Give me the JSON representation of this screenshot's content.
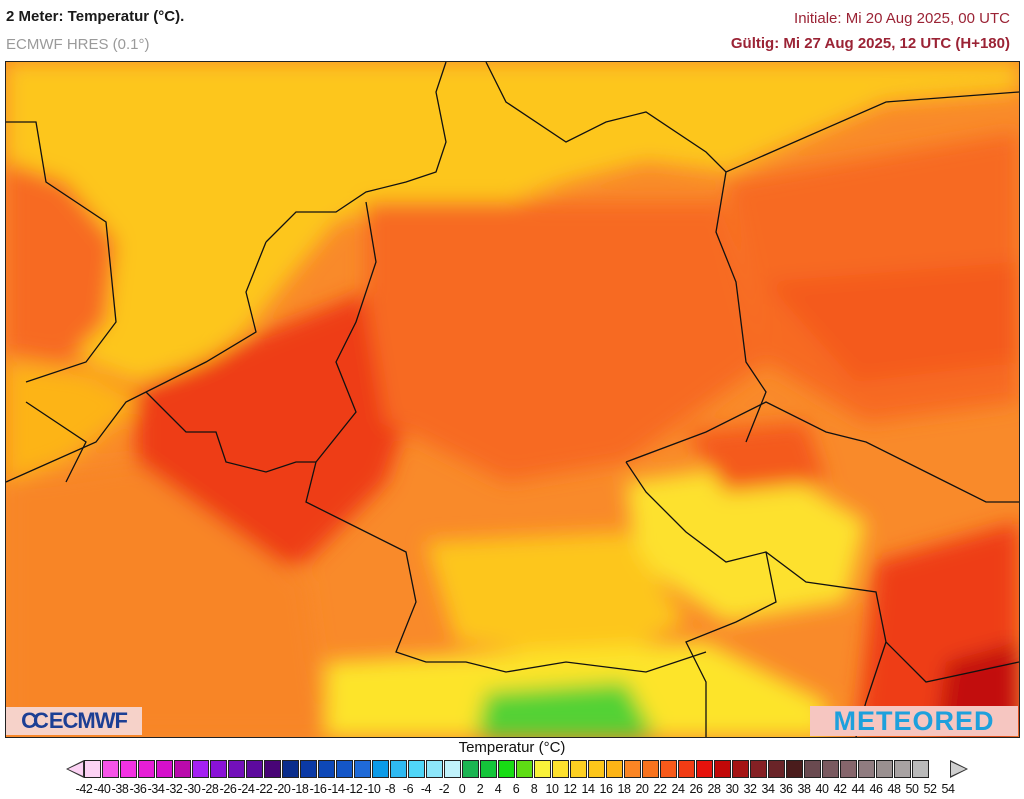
{
  "header": {
    "title": "2 Meter: Temperatur (°C).",
    "model": "ECMWF HRES (0.1°)",
    "initial": "Initiale: Mi 20 Aug 2025, 00 UTC",
    "valid": "Gültig: Mi 27 Aug 2025, 12 UTC (H+180)"
  },
  "logos": {
    "left": "ECMWF",
    "left_mark": "CC",
    "right": "METEORED"
  },
  "map": {
    "region": "Central Europe (Germany, Benelux, France, Czechia, Alps)",
    "field": "2m temperature",
    "dominant_colors": {
      "sea": "#fdc61a",
      "land_warm": "#f76b20",
      "land_hot": "#ee3c18",
      "uplands_cool": "#fde42a",
      "alps_green": "#52d236",
      "borders": "#111111",
      "lakes": "#9a9a9a"
    }
  },
  "colorbar": {
    "title": "Temperatur (°C)",
    "labels": [
      "-42",
      "-40",
      "-38",
      "-36",
      "-34",
      "-32",
      "-30",
      "-28",
      "-26",
      "-24",
      "-22",
      "-20",
      "-18",
      "-16",
      "-14",
      "-12",
      "-10",
      "-8",
      "-6",
      "-4",
      "-2",
      "0",
      "2",
      "4",
      "6",
      "8",
      "10",
      "12",
      "14",
      "16",
      "18",
      "20",
      "22",
      "24",
      "26",
      "28",
      "30",
      "32",
      "34",
      "36",
      "38",
      "40",
      "42",
      "44",
      "46",
      "48",
      "50",
      "52",
      "54"
    ],
    "colors": [
      "#fcd2f4",
      "#f654e8",
      "#f332e3",
      "#e61ed6",
      "#d50fcb",
      "#b90aac",
      "#a421f2",
      "#8a12d8",
      "#7310bb",
      "#5d0a9e",
      "#480476",
      "#0a2d8c",
      "#0b3aa6",
      "#0e48b8",
      "#1456c8",
      "#1f6ad8",
      "#0c9be8",
      "#2fbaf2",
      "#50d6f8",
      "#8de6fa",
      "#c0f2fb",
      "#1bb552",
      "#14c63a",
      "#18dc14",
      "#5edc14",
      "#f9f23a",
      "#fde12e",
      "#fdd022",
      "#fdc61a",
      "#fdb416",
      "#fb8524",
      "#f9731e",
      "#f85a1a",
      "#f23c14",
      "#e6120c",
      "#c20808",
      "#a51414",
      "#852024",
      "#6a2428",
      "#4a1c1c",
      "#6a4a50",
      "#7a5a60",
      "#86666c",
      "#907c80",
      "#9a9090",
      "#a8a2a2",
      "#bababa"
    ]
  }
}
